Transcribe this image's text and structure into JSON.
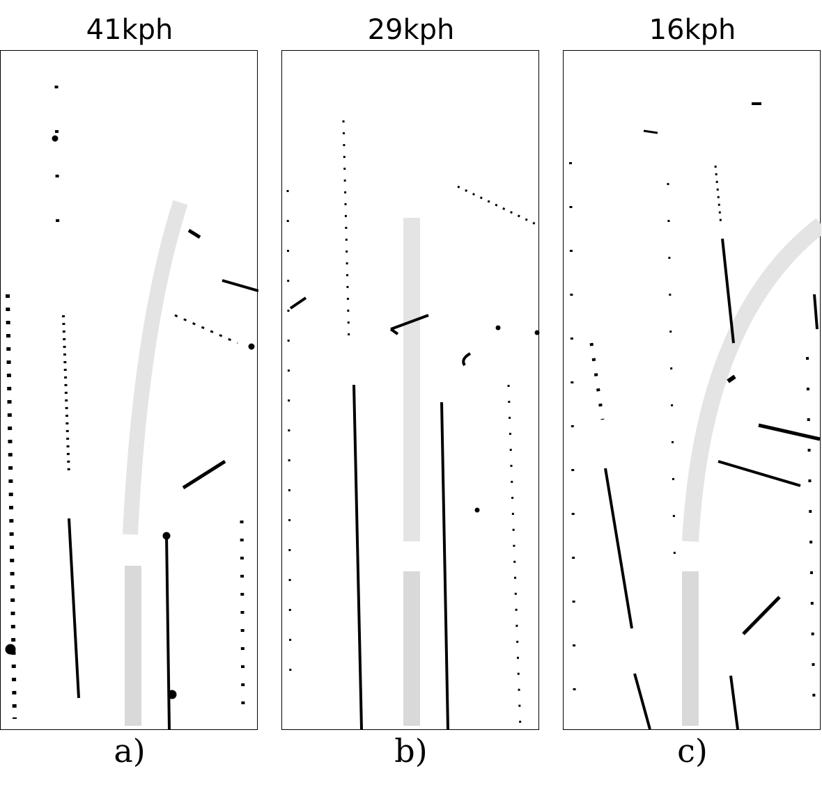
{
  "panels": [
    {
      "title": "41kph",
      "label": "a)"
    },
    {
      "title": "29kph",
      "label": "b)"
    },
    {
      "title": "16kph",
      "label": "c)"
    }
  ],
  "colors": {
    "background": "#ffffff",
    "points": "#000000",
    "path_light": "#e4e4e4",
    "path_dark": "#d9d9d9",
    "border": "#000000"
  }
}
